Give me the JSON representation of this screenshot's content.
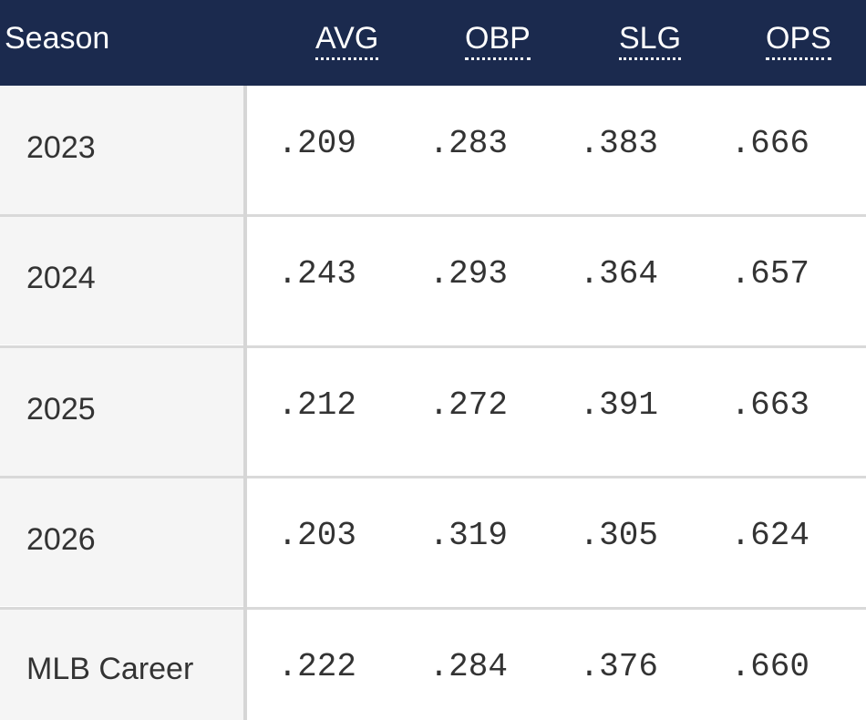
{
  "table": {
    "columns": [
      "Season",
      "AVG",
      "OBP",
      "SLG",
      "OPS"
    ],
    "rows": [
      [
        "2023",
        ".209",
        ".283",
        ".383",
        ".666"
      ],
      [
        "2024",
        ".243",
        ".293",
        ".364",
        ".657"
      ],
      [
        "2025",
        ".212",
        ".272",
        ".391",
        ".663"
      ],
      [
        "2026",
        ".203",
        ".319",
        ".305",
        ".624"
      ],
      [
        "MLB Career",
        ".222",
        ".284",
        ".376",
        ".660"
      ]
    ]
  }
}
